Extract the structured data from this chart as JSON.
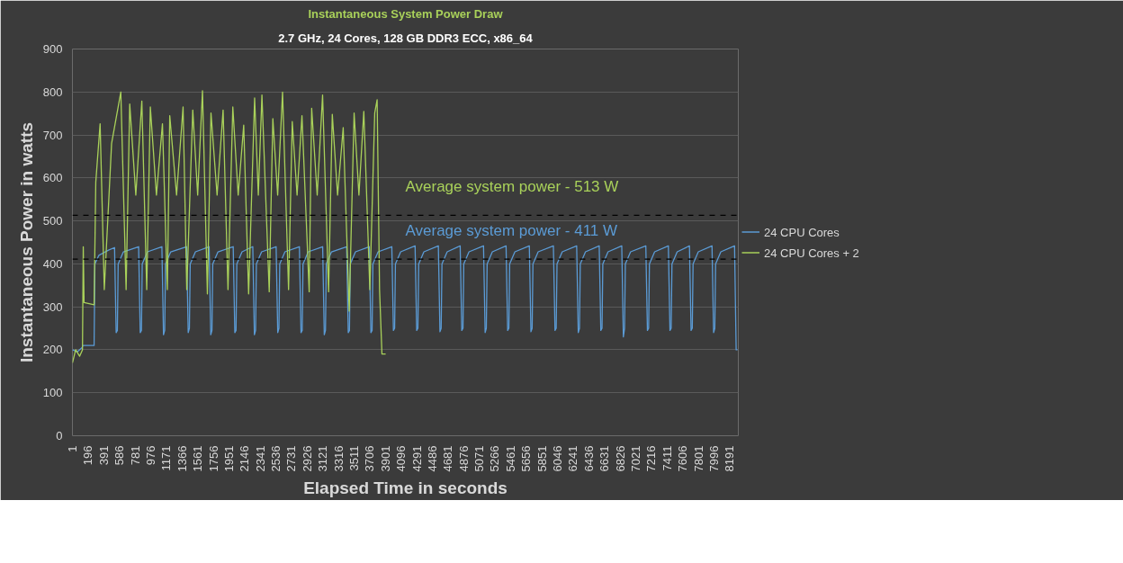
{
  "chart_data": {
    "type": "line",
    "title": "Instantaneous System Power Draw",
    "subtitle": "2.7 GHz, 24 Cores, 128 GB DDR3 ECC, x86_64",
    "xlabel": "Elapsed Time in seconds",
    "ylabel": "Instantaneous Power in watts",
    "series": [
      {
        "name": "24 CPU Cores",
        "color": "#5b9bd5",
        "x": [
          1,
          60,
          120,
          130,
          270,
          280,
          330,
          450,
          525,
          545,
          560,
          570,
          635,
          825,
          845,
          860,
          870,
          935,
          1115,
          1135,
          1150,
          1160,
          1225,
          1423,
          1443,
          1458,
          1468,
          1533,
          1704,
          1724,
          1739,
          1749,
          1814,
          2004,
          2024,
          2039,
          2049,
          2114,
          2248,
          2268,
          2283,
          2293,
          2358,
          2539,
          2559,
          2574,
          2584,
          2649,
          2829,
          2849,
          2864,
          2874,
          2939,
          3119,
          3139,
          3154,
          3164,
          3229,
          3418,
          3438,
          3453,
          3463,
          3528,
          3700,
          3720,
          3735,
          3745,
          3810,
          3981,
          4001,
          4016,
          4026,
          4091,
          4271,
          4291,
          4306,
          4316,
          4381,
          4561,
          4581,
          4596,
          4606,
          4671,
          4833,
          4853,
          4868,
          4878,
          4943,
          5124,
          5144,
          5159,
          5169,
          5234,
          5405,
          5425,
          5440,
          5450,
          5515,
          5695,
          5715,
          5730,
          5740,
          5805,
          5995,
          6015,
          6030,
          6040,
          6105,
          6285,
          6305,
          6320,
          6330,
          6395,
          6566,
          6586,
          6601,
          6611,
          6676,
          6847,
          6867,
          6882,
          6892,
          6957,
          7147,
          7167,
          7182,
          7192,
          7257,
          7428,
          7448,
          7463,
          7473,
          7538,
          7691,
          7711,
          7726,
          7736,
          7801,
          7972,
          7992,
          8007,
          8017,
          8082,
          8253,
          8273,
          8290
        ],
        "values": [
          200,
          195,
          205,
          210,
          210,
          400,
          420,
          432,
          438,
          240,
          245,
          400,
          428,
          440,
          240,
          245,
          400,
          428,
          440,
          235,
          245,
          400,
          428,
          440,
          240,
          250,
          400,
          428,
          440,
          235,
          245,
          400,
          428,
          440,
          240,
          245,
          400,
          428,
          440,
          235,
          245,
          400,
          428,
          440,
          240,
          250,
          400,
          428,
          440,
          240,
          245,
          400,
          428,
          440,
          235,
          245,
          400,
          428,
          440,
          240,
          245,
          400,
          428,
          440,
          240,
          245,
          400,
          428,
          440,
          245,
          250,
          400,
          428,
          442,
          245,
          250,
          400,
          428,
          442,
          242,
          250,
          400,
          428,
          442,
          245,
          250,
          400,
          428,
          442,
          240,
          250,
          400,
          428,
          442,
          245,
          250,
          400,
          428,
          442,
          242,
          250,
          400,
          428,
          442,
          245,
          250,
          400,
          428,
          442,
          240,
          250,
          400,
          428,
          442,
          245,
          250,
          400,
          428,
          442,
          230,
          250,
          400,
          428,
          442,
          245,
          250,
          400,
          428,
          442,
          245,
          250,
          400,
          428,
          442,
          245,
          250,
          400,
          428,
          442,
          240,
          250,
          400,
          428,
          442,
          200,
          200
        ]
      },
      {
        "name": "24 CPU Cores + 2",
        "color": "#a9d15a",
        "x": [
          1,
          40,
          90,
          125,
          135,
          145,
          270,
          291,
          345,
          397,
          488,
          603,
          669,
          714,
          790,
          865,
          926,
          971,
          1047,
          1122,
          1183,
          1213,
          1298,
          1379,
          1425,
          1500,
          1561,
          1621,
          1682,
          1727,
          1803,
          1878,
          1939,
          1999,
          2066,
          2135,
          2196,
          2271,
          2317,
          2362,
          2453,
          2498,
          2558,
          2619,
          2694,
          2740,
          2800,
          2861,
          2951,
          2982,
          3051,
          3118,
          3193,
          3239,
          3305,
          3375,
          3450,
          3511,
          3571,
          3632,
          3707,
          3768,
          3798,
          3828,
          3858,
          3904
        ],
        "values": [
          170,
          200,
          185,
          200,
          440,
          310,
          305,
          590,
          726,
          340,
          680,
          800,
          340,
          772,
          560,
          779,
          340,
          765,
          560,
          726,
          340,
          745,
          560,
          765,
          340,
          758,
          560,
          803,
          330,
          751,
          560,
          758,
          340,
          765,
          560,
          723,
          330,
          786,
          560,
          793,
          335,
          738,
          560,
          800,
          340,
          731,
          560,
          745,
          335,
          762,
          560,
          793,
          335,
          748,
          560,
          717,
          290,
          751,
          560,
          755,
          340,
          751,
          782,
          340,
          190,
          190
        ]
      }
    ],
    "xlim": [
      0,
      8300
    ],
    "xticks": [
      1,
      196,
      391,
      586,
      781,
      976,
      1171,
      1366,
      1561,
      1756,
      1951,
      2146,
      2341,
      2536,
      2731,
      2926,
      3121,
      3316,
      3511,
      3706,
      3901,
      4096,
      4291,
      4486,
      4681,
      4876,
      5071,
      5266,
      5461,
      5656,
      5851,
      6046,
      6241,
      6436,
      6631,
      6826,
      7021,
      7216,
      7411,
      7606,
      7801,
      7996,
      8191
    ],
    "ylim": [
      0,
      900
    ],
    "yticks": [
      0,
      100,
      200,
      300,
      400,
      500,
      600,
      700,
      800,
      900
    ],
    "ref_lines": [
      {
        "axis": "y",
        "value": 411,
        "label": "Average system power - 411 W",
        "color": "#000000",
        "line_style": "dashed"
      },
      {
        "axis": "y",
        "value": 513,
        "label": "Average system power - 513 W",
        "color": "#000000",
        "line_style": "dashed"
      }
    ],
    "grid": "y",
    "legend": "right",
    "marker": "none",
    "line_style": "solid"
  }
}
